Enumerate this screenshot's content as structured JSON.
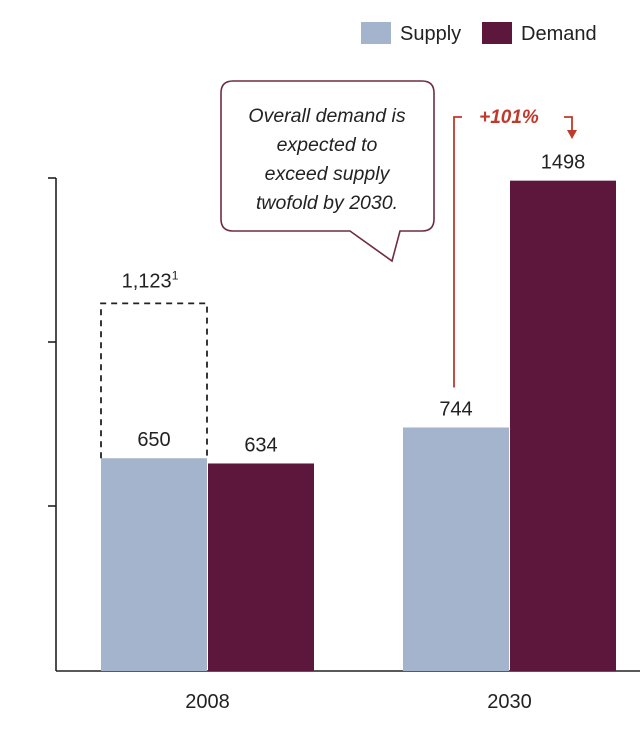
{
  "chart_data": {
    "type": "bar",
    "categories": [
      "2008",
      "2030"
    ],
    "series": [
      {
        "name": "Supply",
        "color": "#a4b4cc",
        "values": [
          650,
          744
        ]
      },
      {
        "name": "Demand",
        "color": "#5e173c",
        "values": [
          634,
          1498
        ]
      }
    ],
    "ylim": [
      0,
      1500
    ],
    "grid": false,
    "legend_placement": "top-right",
    "annotations": {
      "dashed_box": {
        "category": "2008",
        "series": "Supply",
        "value": 1123,
        "label": "1,123",
        "footnote": "1"
      },
      "callout": {
        "lines": [
          "Overall demand is",
          "expected to",
          "exceed supply",
          "twofold by 2030."
        ]
      },
      "growth": {
        "label": "+101%",
        "category": "2030",
        "from": 744,
        "to": 1498,
        "color": "#c0392b"
      }
    },
    "value_labels": {
      "Supply": [
        "650",
        "744"
      ],
      "Demand": [
        "634",
        "1498"
      ]
    }
  }
}
